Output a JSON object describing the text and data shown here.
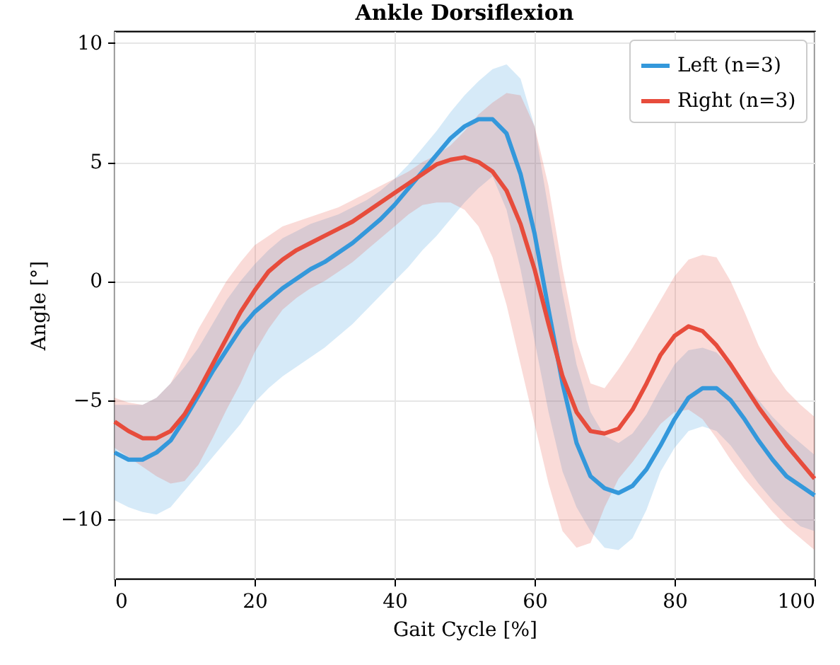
{
  "chart_data": {
    "type": "line",
    "title": "Ankle Dorsiflexion",
    "xlabel": "Gait Cycle [%]",
    "ylabel": "Angle [°]",
    "x": [
      0,
      2,
      4,
      6,
      8,
      10,
      12,
      14,
      16,
      18,
      20,
      22,
      24,
      26,
      28,
      30,
      32,
      34,
      36,
      38,
      40,
      42,
      44,
      46,
      48,
      50,
      52,
      54,
      56,
      58,
      60,
      62,
      64,
      66,
      68,
      70,
      72,
      74,
      76,
      78,
      80,
      82,
      84,
      86,
      88,
      90,
      92,
      94,
      96,
      98,
      100
    ],
    "series": [
      {
        "name": "Left (n=3)",
        "color": "#3498db",
        "values": [
          -7.2,
          -7.5,
          -7.5,
          -7.2,
          -6.7,
          -5.8,
          -4.8,
          -3.8,
          -2.9,
          -2.0,
          -1.3,
          -0.8,
          -0.3,
          0.1,
          0.5,
          0.8,
          1.2,
          1.6,
          2.1,
          2.6,
          3.2,
          3.9,
          4.6,
          5.3,
          6.0,
          6.5,
          6.8,
          6.8,
          6.2,
          4.5,
          2.0,
          -1.2,
          -4.3,
          -6.8,
          -8.2,
          -8.7,
          -8.9,
          -8.6,
          -7.9,
          -6.9,
          -5.8,
          -4.9,
          -4.5,
          -4.5,
          -5.0,
          -5.8,
          -6.7,
          -7.5,
          -8.2,
          -8.6,
          -9.0
        ],
        "lower": [
          -9.2,
          -9.5,
          -9.7,
          -9.8,
          -9.5,
          -8.8,
          -8.1,
          -7.4,
          -6.7,
          -6.0,
          -5.1,
          -4.5,
          -4.0,
          -3.6,
          -3.2,
          -2.8,
          -2.3,
          -1.8,
          -1.2,
          -0.6,
          0.0,
          0.6,
          1.3,
          1.9,
          2.6,
          3.3,
          3.9,
          4.4,
          3.0,
          0.5,
          -2.5,
          -5.5,
          -8.0,
          -9.5,
          -10.5,
          -11.2,
          -11.3,
          -10.8,
          -9.6,
          -8.0,
          -7.0,
          -6.3,
          -6.1,
          -6.3,
          -6.9,
          -7.7,
          -8.5,
          -9.2,
          -9.8,
          -10.3,
          -10.5
        ],
        "upper": [
          -5.2,
          -5.2,
          -5.2,
          -4.9,
          -4.3,
          -3.6,
          -2.8,
          -1.8,
          -0.8,
          0.0,
          0.7,
          1.3,
          1.8,
          2.1,
          2.4,
          2.6,
          2.8,
          3.1,
          3.4,
          3.8,
          4.3,
          4.9,
          5.6,
          6.3,
          7.1,
          7.8,
          8.4,
          8.9,
          9.1,
          8.5,
          6.5,
          3.0,
          -0.5,
          -3.5,
          -5.5,
          -6.5,
          -6.8,
          -6.4,
          -5.6,
          -4.5,
          -3.5,
          -2.9,
          -2.8,
          -3.0,
          -3.6,
          -4.3,
          -5.0,
          -5.7,
          -6.3,
          -6.8,
          -7.3
        ]
      },
      {
        "name": "Right (n=3)",
        "color": "#e74c3c",
        "values": [
          -5.9,
          -6.3,
          -6.6,
          -6.6,
          -6.3,
          -5.6,
          -4.6,
          -3.5,
          -2.4,
          -1.3,
          -0.4,
          0.4,
          0.9,
          1.3,
          1.6,
          1.9,
          2.2,
          2.5,
          2.9,
          3.3,
          3.7,
          4.1,
          4.5,
          4.9,
          5.1,
          5.2,
          5.0,
          4.6,
          3.8,
          2.4,
          0.5,
          -1.8,
          -4.0,
          -5.5,
          -6.3,
          -6.4,
          -6.2,
          -5.4,
          -4.3,
          -3.1,
          -2.3,
          -1.9,
          -2.1,
          -2.7,
          -3.5,
          -4.4,
          -5.3,
          -6.1,
          -6.9,
          -7.6,
          -8.3
        ],
        "lower": [
          -7.0,
          -7.4,
          -7.8,
          -8.2,
          -8.5,
          -8.4,
          -7.7,
          -6.6,
          -5.4,
          -4.3,
          -3.0,
          -2.0,
          -1.2,
          -0.7,
          -0.3,
          0.0,
          0.4,
          0.8,
          1.3,
          1.8,
          2.3,
          2.8,
          3.2,
          3.3,
          3.3,
          3.0,
          2.3,
          1.0,
          -1.0,
          -3.5,
          -6.0,
          -8.5,
          -10.5,
          -11.2,
          -11.0,
          -9.5,
          -8.3,
          -7.6,
          -6.8,
          -6.0,
          -5.5,
          -5.4,
          -5.8,
          -6.6,
          -7.5,
          -8.3,
          -9.0,
          -9.7,
          -10.3,
          -10.8,
          -11.3
        ],
        "upper": [
          -4.9,
          -5.1,
          -5.2,
          -4.9,
          -4.3,
          -3.2,
          -2.0,
          -1.0,
          0.0,
          0.8,
          1.5,
          1.9,
          2.3,
          2.5,
          2.7,
          2.9,
          3.1,
          3.4,
          3.7,
          4.0,
          4.3,
          4.6,
          5.0,
          5.3,
          5.7,
          6.3,
          7.0,
          7.5,
          7.9,
          7.8,
          6.5,
          4.0,
          0.5,
          -2.5,
          -4.3,
          -4.5,
          -3.7,
          -2.8,
          -1.8,
          -0.8,
          0.2,
          0.9,
          1.1,
          1.0,
          0.0,
          -1.3,
          -2.7,
          -3.8,
          -4.6,
          -5.2,
          -5.7
        ]
      }
    ],
    "xlim": [
      0,
      100
    ],
    "xticks": [
      0,
      20,
      40,
      60,
      80,
      100
    ],
    "ylim": [
      -12.5,
      10.5
    ],
    "yticks": [
      {
        "value": -10,
        "label": "−10"
      },
      {
        "value": -5,
        "label": "−5"
      },
      0,
      5,
      10
    ],
    "grid": true,
    "legend": "top right",
    "line_style": "solid",
    "marker": "none"
  }
}
